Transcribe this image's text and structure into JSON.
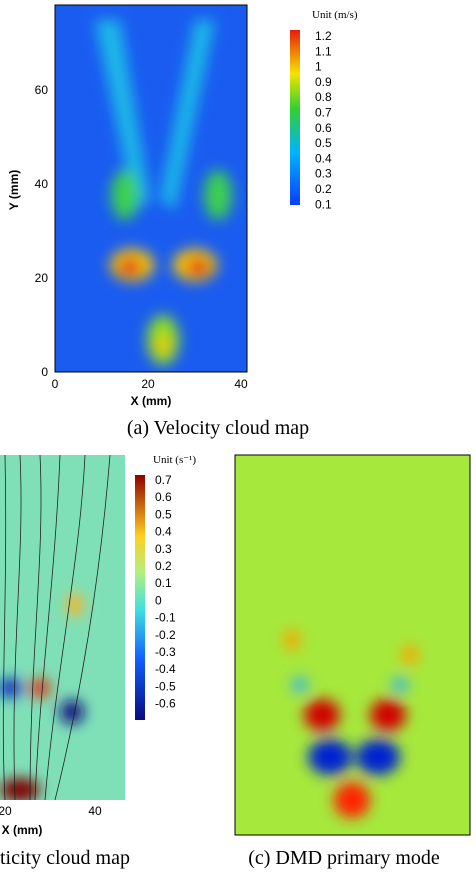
{
  "panels": [
    {
      "caption": "(a) Velocity cloud map",
      "x_label": "X (mm)",
      "y_label": "Y (mm)",
      "x_ticks": [
        "0",
        "20",
        "40"
      ],
      "y_ticks": [
        "0",
        "20",
        "40",
        "60"
      ],
      "unit": "Unit (m/s)",
      "colorbar": [
        "1.2",
        "1.1",
        "1",
        "0.9",
        "0.8",
        "0.7",
        "0.6",
        "0.5",
        "0.4",
        "0.3",
        "0.2",
        "0.1"
      ]
    },
    {
      "caption": "ticity cloud map",
      "x_label": "X (mm)",
      "x_ticks": [
        "20",
        "40"
      ],
      "unit": "Unit (s⁻¹)",
      "colorbar": [
        "0.7",
        "0.6",
        "0.5",
        "0.4",
        "0.3",
        "0.2",
        "0.1",
        "0",
        "-0.1",
        "-0.2",
        "-0.3",
        "-0.4",
        "-0.5",
        "-0.6"
      ]
    },
    {
      "caption": "(c) DMD primary mode"
    }
  ]
}
